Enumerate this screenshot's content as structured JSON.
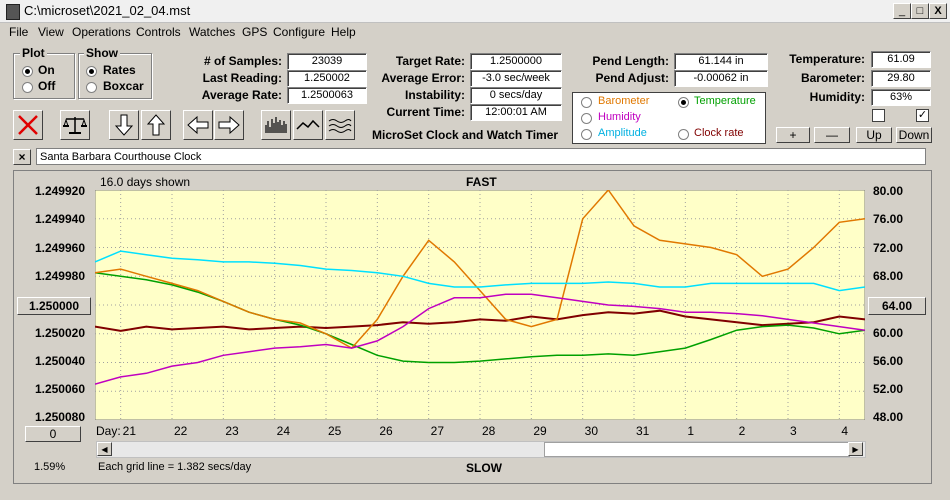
{
  "window": {
    "title": "C:\\microset\\2021_02_04.mst",
    "min": "_",
    "max": "□",
    "close": "X"
  },
  "menu": [
    "File",
    "View",
    "Operations",
    "Controls",
    "Watches",
    "GPS",
    "Configure",
    "Help"
  ],
  "plot_group": {
    "title": "Plot",
    "options": [
      "On",
      "Off"
    ],
    "selected": "On"
  },
  "show_group": {
    "title": "Show",
    "options": [
      "Rates",
      "Boxcar"
    ],
    "selected": "Rates"
  },
  "stats": {
    "samples_label": "# of Samples:",
    "samples": "23039",
    "last_label": "Last Reading:",
    "last": "1.250002",
    "avg_label": "Average Rate:",
    "avg": "1.2500063"
  },
  "rates": {
    "target_label": "Target Rate:",
    "target": "1.2500000",
    "error_label": "Average Error:",
    "error": "-3.0 sec/week",
    "instab_label": "Instability:",
    "instab": "0 secs/day",
    "time_label": "Current Time:",
    "time": "12:00:01 AM",
    "app_title": "MicroSet Clock and Watch Timer"
  },
  "pend": {
    "length_label": "Pend Length:",
    "length": "61.144 in",
    "adjust_label": "Pend Adjust:",
    "adjust": "-0.00062 in"
  },
  "sensor_select": {
    "options": [
      {
        "label": "Barometer",
        "color": "#e07800"
      },
      {
        "label": "Temperature",
        "color": "#00a000"
      },
      {
        "label": "Humidity",
        "color": "#c000c0"
      },
      {
        "label": "Amplitude",
        "color": "#00b0e0"
      },
      {
        "label": "Clock rate",
        "color": "#800000"
      }
    ],
    "selected": "Temperature"
  },
  "env": {
    "temp_label": "Temperature:",
    "temp": "61.09",
    "baro_label": "Barometer:",
    "baro": "29.80",
    "hum_label": "Humidity:",
    "hum": "63%"
  },
  "scale_buttons": [
    "+",
    "—",
    "Up",
    "Down"
  ],
  "clock_name": "Santa Barbara Courthouse Clock",
  "plot": {
    "days_shown": "16.0 days shown",
    "top_label": "FAST",
    "bottom_label": "SLOW",
    "left_ticks": [
      "1.249920",
      "1.249940",
      "1.249960",
      "1.249980",
      "1.250000",
      "1.250020",
      "1.250040",
      "1.250060",
      "1.250080"
    ],
    "right_ticks": [
      "80.00",
      "76.00",
      "72.00",
      "68.00",
      "64.00",
      "60.00",
      "56.00",
      "52.00",
      "48.00"
    ],
    "center_left_button": "1.250000",
    "center_right_button": "64.00",
    "zero_button": "0",
    "day_label": "Day:",
    "days": [
      "21",
      "22",
      "23",
      "24",
      "25",
      "26",
      "27",
      "28",
      "29",
      "30",
      "31",
      "1",
      "2",
      "3",
      "4"
    ],
    "grid_note": "Each grid line = 1.382 secs/day",
    "percent": "1.59%",
    "background": "#ffffc8"
  },
  "chart_data": {
    "type": "line",
    "x_unit": "day",
    "x": [
      20.5,
      21,
      21.5,
      22,
      22.5,
      23,
      23.5,
      24,
      24.5,
      25,
      25.5,
      26,
      26.5,
      27,
      27.5,
      28,
      28.5,
      29,
      29.5,
      30,
      30.5,
      31,
      31.5,
      32,
      32.5,
      33,
      33.5,
      34,
      34.5,
      35,
      35.5
    ],
    "ylim_left": [
      1.25008,
      1.24992
    ],
    "ylim_right": [
      48,
      80
    ],
    "series": [
      {
        "name": "Clock rate",
        "color": "#800000",
        "axis": "left",
        "values": [
          1.250015,
          1.250018,
          1.250015,
          1.250017,
          1.250016,
          1.250015,
          1.250017,
          1.250016,
          1.250015,
          1.250016,
          1.250015,
          1.250014,
          1.250012,
          1.250013,
          1.250012,
          1.25001,
          1.250011,
          1.250008,
          1.25001,
          1.250007,
          1.250005,
          1.250006,
          1.250004,
          1.250008,
          1.25001,
          1.250012,
          1.250014,
          1.250013,
          1.250012,
          1.250008,
          1.25001
        ]
      },
      {
        "name": "Temperature",
        "color": "#00a000",
        "axis": "right",
        "values": [
          68.5,
          68.0,
          67.5,
          66.8,
          65.8,
          64.5,
          63.0,
          62.0,
          61.2,
          60.0,
          58.5,
          57.0,
          56.2,
          56.0,
          56.0,
          56.2,
          56.5,
          56.8,
          57.0,
          57.0,
          57.2,
          57.0,
          57.5,
          58.0,
          59.2,
          60.5,
          61.0,
          61.2,
          60.8,
          60.0,
          60.5
        ]
      },
      {
        "name": "Barometer",
        "color": "#e07800",
        "axis": "right",
        "values": [
          68.5,
          69.0,
          68.0,
          67.0,
          66.0,
          64.5,
          63.0,
          62.0,
          61.5,
          60.0,
          58.0,
          62.0,
          68.0,
          73.0,
          70.0,
          66.0,
          62.0,
          61.0,
          62.0,
          76.0,
          80.0,
          75.0,
          73.0,
          72.5,
          72.0,
          71.0,
          68.0,
          69.0,
          72.0,
          75.5,
          76.0
        ]
      },
      {
        "name": "Humidity",
        "color": "#c000c0",
        "axis": "right",
        "values": [
          53.0,
          54.0,
          54.5,
          55.5,
          56.0,
          57.0,
          57.5,
          58.0,
          58.2,
          58.5,
          58.0,
          59.0,
          61.0,
          63.5,
          65.0,
          65.0,
          65.5,
          65.5,
          65.0,
          64.5,
          64.0,
          63.8,
          63.5,
          63.0,
          63.0,
          62.8,
          62.5,
          62.0,
          61.5,
          61.0,
          60.5
        ]
      },
      {
        "name": "Amplitude",
        "color": "#00e0ff",
        "axis": "right",
        "values": [
          70.0,
          71.5,
          71.0,
          70.5,
          70.3,
          70.0,
          70.0,
          69.8,
          69.5,
          69.0,
          68.8,
          68.5,
          68.0,
          67.0,
          66.5,
          66.5,
          66.8,
          67.0,
          67.0,
          67.0,
          67.2,
          67.0,
          66.5,
          66.5,
          67.0,
          67.0,
          67.0,
          67.0,
          67.0,
          66.0,
          66.5
        ]
      }
    ]
  }
}
